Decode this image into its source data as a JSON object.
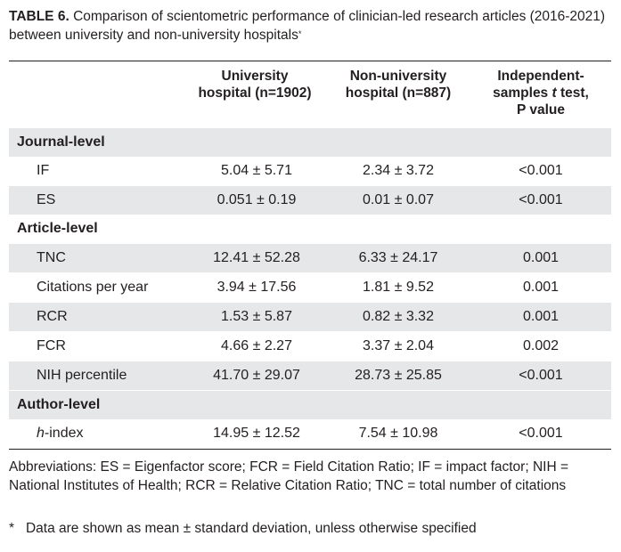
{
  "caption": {
    "label": "TABLE 6.",
    "text": "Comparison of scientometric performance of clinician-led research articles (2016-2021) between university and non-university hospitals",
    "marker": "*"
  },
  "columns": {
    "col1": "University hospital (n=1902)",
    "col1_line1": "University",
    "col1_line2": "hospital (n=1902)",
    "col2_line1": "Non-university",
    "col2_line2": "hospital (n=887)",
    "col3_line1": "Independent-",
    "col3_line2_pre": "samples ",
    "col3_line2_t": "t",
    "col3_line2_post": " test,",
    "col3_line3": "P value"
  },
  "sections": [
    {
      "title": "Journal-level",
      "rows": [
        {
          "label": "IF",
          "university": "5.04 ± 5.71",
          "non_university": "2.34 ± 3.72",
          "p": "<0.001"
        },
        {
          "label": "ES",
          "university": "0.051 ± 0.19",
          "non_university": "0.01 ± 0.07",
          "p": "<0.001"
        }
      ]
    },
    {
      "title": "Article-level",
      "rows": [
        {
          "label": "TNC",
          "university": "12.41 ± 52.28",
          "non_university": "6.33 ± 24.17",
          "p": "0.001"
        },
        {
          "label": "Citations per year",
          "university": "3.94 ± 17.56",
          "non_university": "1.81 ± 9.52",
          "p": "0.001"
        },
        {
          "label": "RCR",
          "university": "1.53 ± 5.87",
          "non_university": "0.82 ± 3.32",
          "p": "0.001"
        },
        {
          "label": "FCR",
          "university": "4.66 ± 2.27",
          "non_university": "3.37 ± 2.04",
          "p": "0.002"
        },
        {
          "label": "NIH percentile",
          "university": "41.70 ± 29.07",
          "non_university": "28.73 ± 25.85",
          "p": "<0.001"
        }
      ]
    },
    {
      "title": "Author-level",
      "rows": [
        {
          "label_italic": "h",
          "label": "-index",
          "university": "14.95 ± 12.52",
          "non_university": "7.54 ± 10.98",
          "p": "<0.001"
        }
      ]
    }
  ],
  "footnotes": {
    "abbreviations": "Abbreviations: ES = Eigenfactor score; FCR = Field Citation Ratio; IF = impact factor; NIH = National Institutes of Health; RCR = Relative Citation Ratio; TNC = total number of citations",
    "star_marker": "*",
    "star_text": "Data are shown as mean ± standard deviation, unless otherwise specified"
  }
}
